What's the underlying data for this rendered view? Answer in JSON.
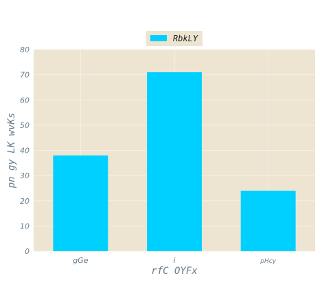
{
  "chart_data": {
    "type": "bar",
    "title": "",
    "categories": [
      "gGe",
      "i",
      "pHcy"
    ],
    "series": [
      {
        "name": "RbkLY",
        "values": [
          38,
          71,
          24
        ],
        "color": "#00d0ff"
      }
    ],
    "xlabel": "rfC OYFx",
    "ylabel": "pn gy LK wvKs",
    "ylim": [
      0,
      80
    ],
    "yticks": [
      0,
      10,
      20,
      30,
      40,
      50,
      60,
      70,
      80
    ],
    "grid": true,
    "legend_position": "top-center",
    "plot_background": "#ede5d1",
    "grid_color": "#f6f1e6",
    "text_color": "#677d8c"
  }
}
